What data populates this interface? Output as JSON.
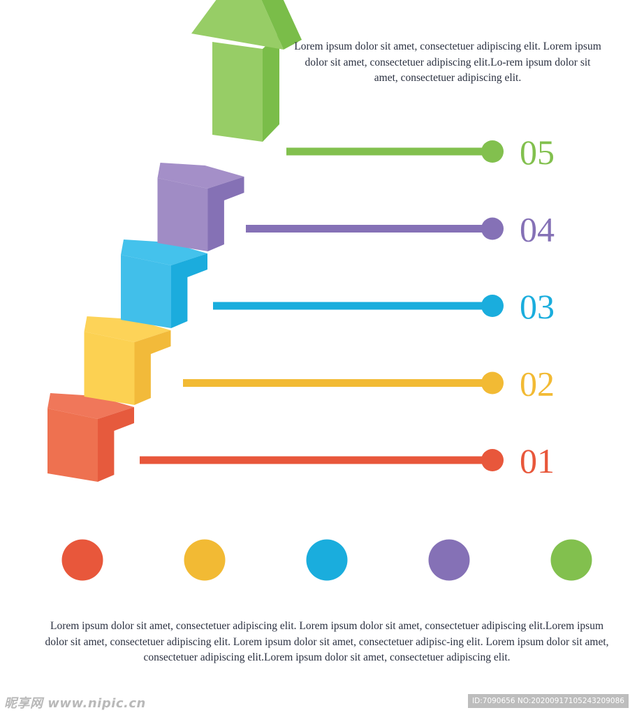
{
  "top_text": "Lorem ipsum dolor sit amet, consectetuer adipiscing elit. Lorem ipsum dolor sit amet, consectetuer adipiscing elit.Lo-rem ipsum dolor sit amet, consectetuer adipiscing elit.",
  "bottom_text": "Lorem ipsum dolor sit amet, consectetuer adipiscing elit. Lorem ipsum dolor sit amet, consectetuer adipiscing elit.Lorem ipsum dolor sit amet, consectetuer adipiscing elit. Lorem ipsum dolor sit amet, consectetuer adipisc-ing elit. Lorem ipsum dolor sit amet, consectetuer adipiscing elit.Lorem ipsum dolor sit amet, consectetuer adipiscing elit.",
  "steps": [
    {
      "label": "01",
      "color": "#E8573B",
      "front": "#EE7150",
      "side": "#E65A3D",
      "top": "#F0775A"
    },
    {
      "label": "02",
      "color": "#F2BA34",
      "front": "#FCD152",
      "side": "#F2BA3A",
      "top": "#FDD358"
    },
    {
      "label": "03",
      "color": "#1AADDD",
      "front": "#41BFEA",
      "side": "#1BACDD",
      "top": "#44C2EC"
    },
    {
      "label": "04",
      "color": "#8571B6",
      "front": "#A08CC5",
      "side": "#8571B5",
      "top": "#A48FC8"
    },
    {
      "label": "05",
      "color": "#82C04E",
      "front": "#97CD66",
      "side": "#7ABD49",
      "top": "#9ED26C"
    }
  ],
  "legend_dots": [
    "#E8573B",
    "#F2BA34",
    "#1AADDD",
    "#8571B6",
    "#82C04E"
  ],
  "watermark_left": "昵享网 www.nipic.cn",
  "watermark_right": "ID:7090656 NO:20200917105243209086"
}
